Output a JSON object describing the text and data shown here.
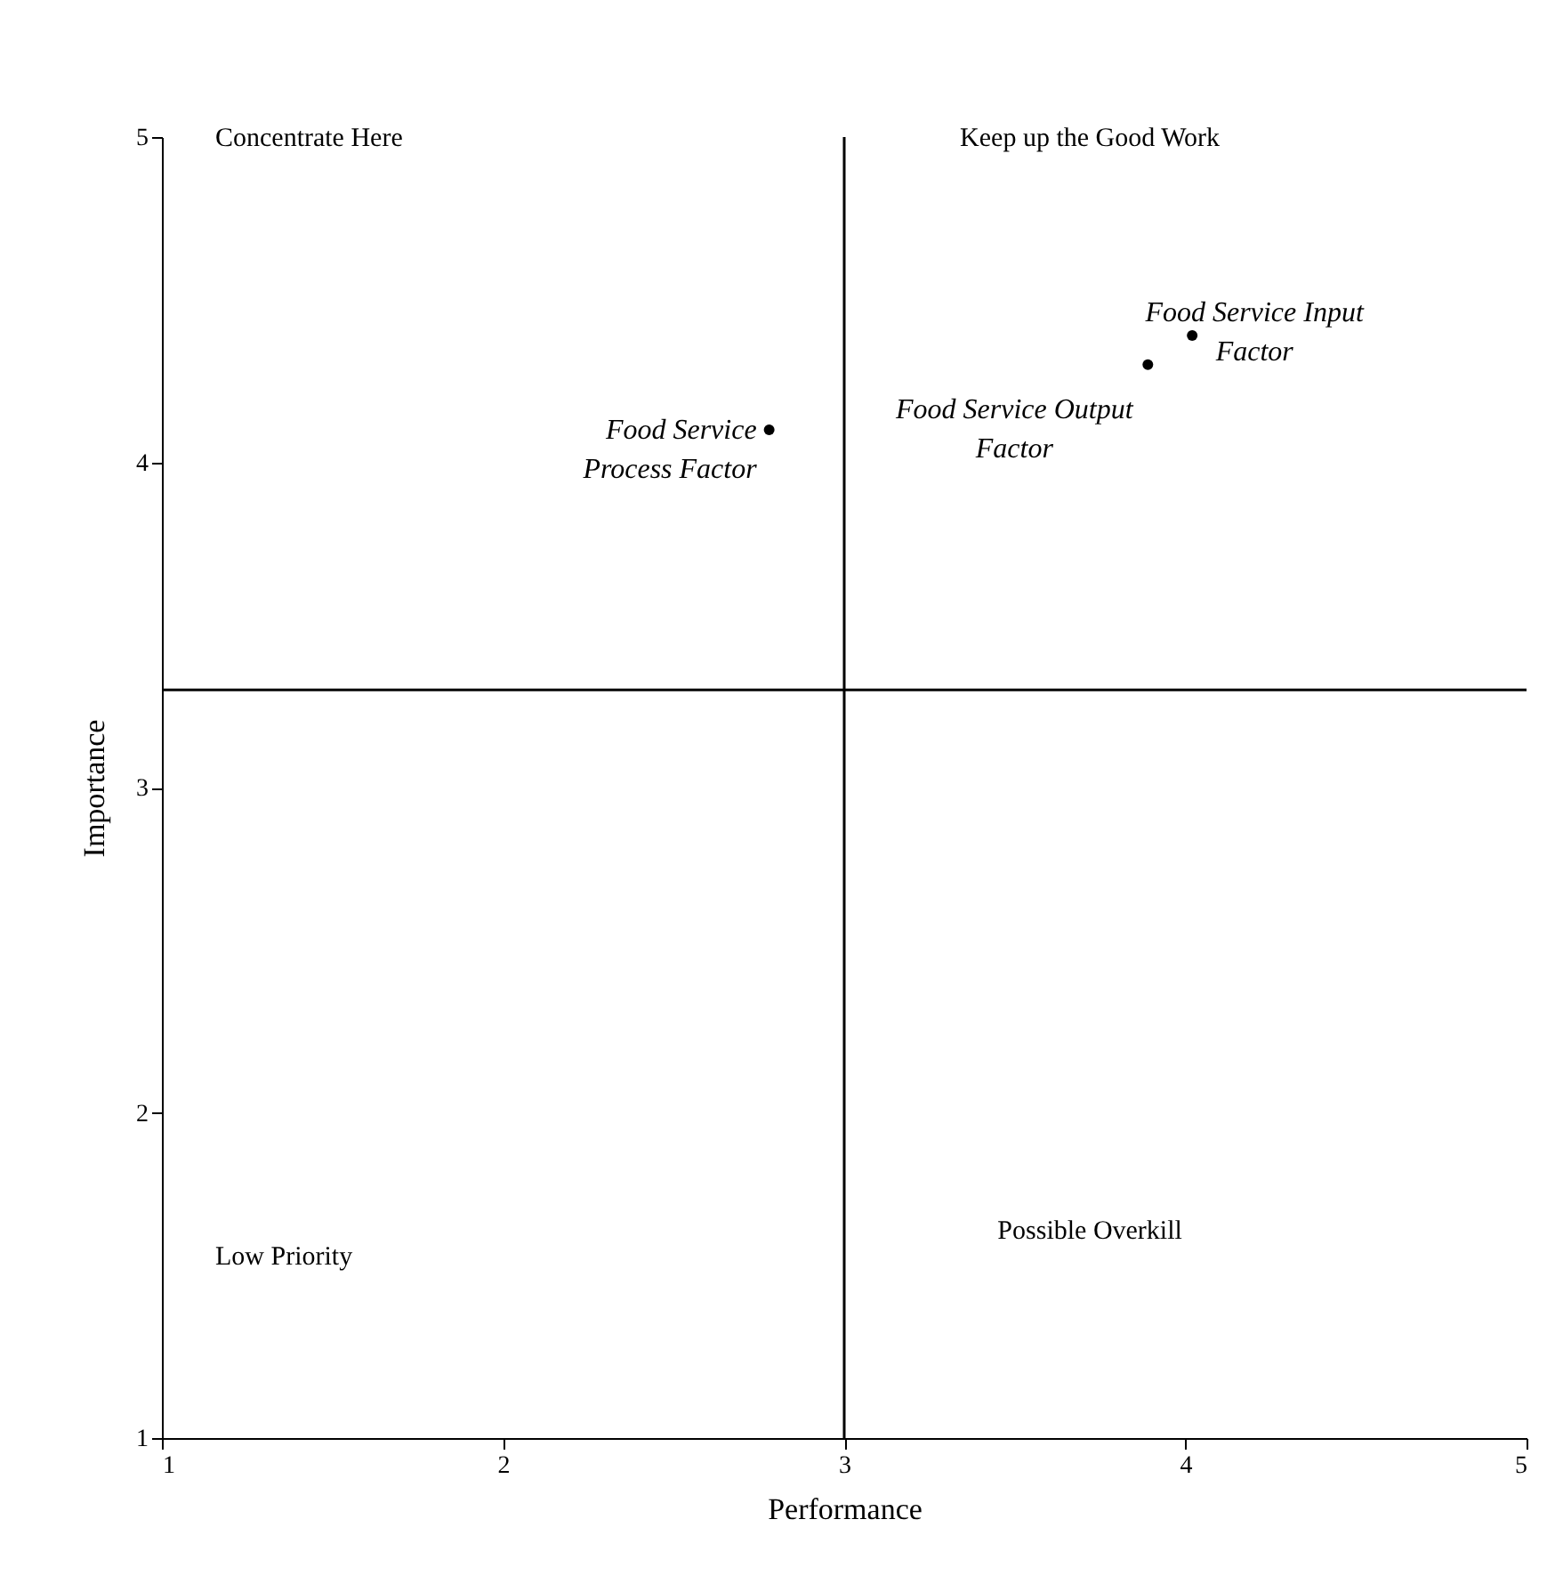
{
  "chart_data": {
    "type": "scatter",
    "xlabel": "Performance",
    "ylabel": "Importance",
    "x": [
      2.78,
      3.89,
      4.02
    ],
    "series": [
      {
        "color": "#000000",
        "values": [
          4.1,
          4.3,
          4.39
        ]
      }
    ],
    "xlim": [
      1,
      5
    ],
    "ylim": [
      1,
      5
    ],
    "xticks": [
      1,
      2,
      3,
      4,
      5
    ],
    "yticks": [
      1,
      2,
      3,
      4,
      5
    ],
    "grid": false,
    "marker": "circle",
    "ref_lines": [
      {
        "axis": "x",
        "value": 3,
        "color": "#000000"
      },
      {
        "axis": "y",
        "value": 3.3,
        "color": "#000000"
      }
    ],
    "annotations": [
      "Concentrate Here",
      "Keep up the Good Work",
      "Low Priority",
      "Possible Overkill",
      {
        "text": "Food Service\nProcess Factor",
        "x": 2.78,
        "y": 4.1
      },
      {
        "text": "Food Service Output\nFactor",
        "x": 3.89,
        "y": 4.3
      },
      {
        "text": "Food Service Input\nFactor",
        "x": 4.02,
        "y": 4.39
      }
    ]
  }
}
